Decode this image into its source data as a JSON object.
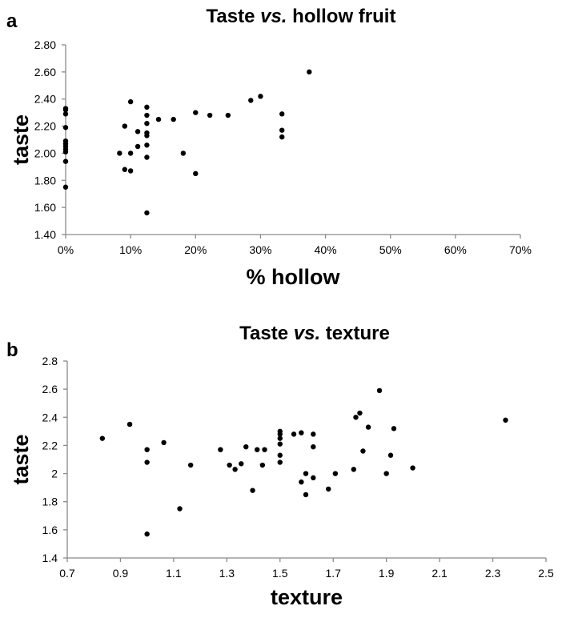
{
  "chart_data": [
    {
      "panel": "a",
      "type": "scatter",
      "title_main": "Taste ",
      "title_italic": "vs.",
      "title_rest": " hollow fruit",
      "xlabel": "% hollow",
      "ylabel": "taste",
      "xlim": [
        0,
        0.7
      ],
      "ylim": [
        1.4,
        2.8
      ],
      "xticks": [
        "0%",
        "10%",
        "20%",
        "30%",
        "40%",
        "50%",
        "60%",
        "70%"
      ],
      "yticks": [
        "1.40",
        "1.60",
        "1.80",
        "2.00",
        "2.20",
        "2.40",
        "2.60",
        "2.80"
      ],
      "grid": false,
      "points": [
        [
          0,
          2.33
        ],
        [
          0,
          2.32
        ],
        [
          0,
          2.29
        ],
        [
          0,
          2.19
        ],
        [
          0,
          2.09
        ],
        [
          0,
          2.07
        ],
        [
          0,
          2.05
        ],
        [
          0,
          2.03
        ],
        [
          0,
          2.01
        ],
        [
          0,
          1.94
        ],
        [
          0,
          1.75
        ],
        [
          0.083,
          2.0
        ],
        [
          0.091,
          2.2
        ],
        [
          0.091,
          1.88
        ],
        [
          0.1,
          2.38
        ],
        [
          0.1,
          2.0
        ],
        [
          0.1,
          1.87
        ],
        [
          0.111,
          2.16
        ],
        [
          0.111,
          2.05
        ],
        [
          0.125,
          2.34
        ],
        [
          0.125,
          2.28
        ],
        [
          0.125,
          2.22
        ],
        [
          0.125,
          2.15
        ],
        [
          0.125,
          2.13
        ],
        [
          0.125,
          2.06
        ],
        [
          0.125,
          1.97
        ],
        [
          0.125,
          1.56
        ],
        [
          0.143,
          2.25
        ],
        [
          0.166,
          2.25
        ],
        [
          0.181,
          2.0
        ],
        [
          0.2,
          2.3
        ],
        [
          0.2,
          1.85
        ],
        [
          0.222,
          2.28
        ],
        [
          0.25,
          2.28
        ],
        [
          0.285,
          2.39
        ],
        [
          0.3,
          2.42
        ],
        [
          0.333,
          2.29
        ],
        [
          0.333,
          2.17
        ],
        [
          0.333,
          2.12
        ],
        [
          0.375,
          2.6
        ]
      ]
    },
    {
      "panel": "b",
      "type": "scatter",
      "title_main": "Taste ",
      "title_italic": "vs.",
      "title_rest": " texture",
      "xlabel": "texture",
      "ylabel": "taste",
      "xlim": [
        0.7,
        2.5
      ],
      "ylim": [
        1.4,
        2.8
      ],
      "xticks": [
        "0.7",
        "0.9",
        "1.1",
        "1.3",
        "1.5",
        "1.7",
        "1.9",
        "2.1",
        "2.3",
        "2.5"
      ],
      "yticks": [
        "1.4",
        "1.6",
        "1.8",
        "2",
        "2.2",
        "2.4",
        "2.6",
        "2.8"
      ],
      "grid": false,
      "points": [
        [
          0.832,
          2.25
        ],
        [
          0.935,
          2.35
        ],
        [
          1.0,
          2.17
        ],
        [
          1.0,
          2.08
        ],
        [
          1.0,
          1.57
        ],
        [
          1.063,
          2.22
        ],
        [
          1.123,
          1.75
        ],
        [
          1.164,
          2.06
        ],
        [
          1.276,
          2.17
        ],
        [
          1.31,
          2.06
        ],
        [
          1.331,
          2.03
        ],
        [
          1.354,
          2.07
        ],
        [
          1.372,
          2.19
        ],
        [
          1.397,
          1.88
        ],
        [
          1.414,
          2.17
        ],
        [
          1.442,
          2.17
        ],
        [
          1.434,
          2.06
        ],
        [
          1.5,
          2.3
        ],
        [
          1.5,
          2.28
        ],
        [
          1.5,
          2.25
        ],
        [
          1.5,
          2.21
        ],
        [
          1.5,
          2.13
        ],
        [
          1.5,
          2.08
        ],
        [
          1.552,
          2.28
        ],
        [
          1.58,
          2.29
        ],
        [
          1.58,
          1.94
        ],
        [
          1.597,
          2.0
        ],
        [
          1.597,
          1.85
        ],
        [
          1.625,
          2.28
        ],
        [
          1.625,
          2.19
        ],
        [
          1.625,
          1.97
        ],
        [
          1.682,
          1.89
        ],
        [
          1.708,
          2.0
        ],
        [
          1.777,
          2.03
        ],
        [
          1.785,
          2.4
        ],
        [
          1.8,
          2.43
        ],
        [
          1.812,
          2.16
        ],
        [
          1.832,
          2.33
        ],
        [
          1.874,
          2.59
        ],
        [
          1.9,
          2.0
        ],
        [
          1.916,
          2.13
        ],
        [
          1.928,
          2.32
        ],
        [
          1.999,
          2.04
        ],
        [
          2.348,
          2.38
        ]
      ]
    }
  ]
}
